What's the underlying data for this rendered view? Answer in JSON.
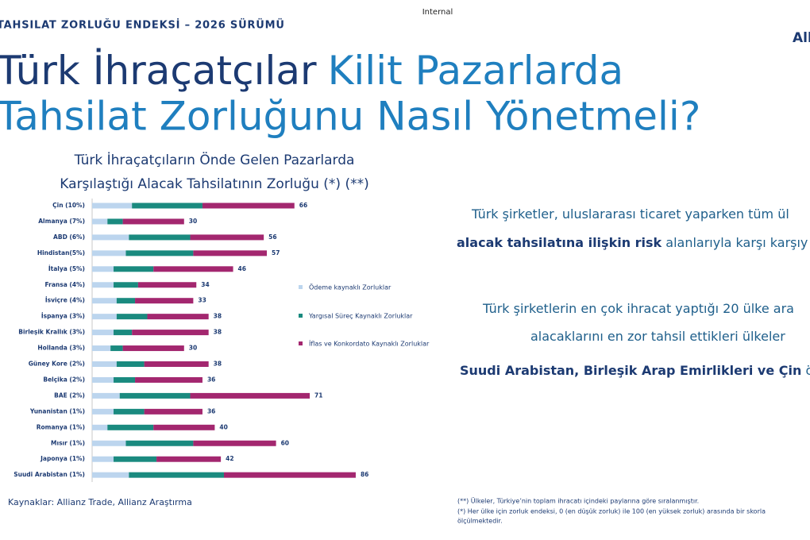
{
  "header": {
    "classification": "Internal",
    "kicker": "TAHSILAT ZORLUĞU ENDEKSİ – 2026 SÜRÜMÜ",
    "logo": "Allianz",
    "title_line1_dark": "Türk İhraçatçılar",
    "title_line1_blue": "Kilit Pazarlarda",
    "title_line2": "Tahsilat Zorluğunu Nasıl Yönetmeli?"
  },
  "chart_data": {
    "type": "stacked-bar-horizontal",
    "title": [
      "Türk İhraçatçıların Önde Gelen Pazarlarda",
      "Karşılaştığı Alacak Tahsilatının Zorluğu (*) (**)"
    ],
    "categories": [
      "Çin (10%)",
      "Almanya (7%)",
      "ABD (6%)",
      "Hindistan(5%)",
      "İtalya (5%)",
      "Fransa (4%)",
      "İsviçre (4%)",
      "İspanya (3%)",
      "Birleşik Krallık (3%)",
      "Hollanda (3%)",
      "Güney Kore (2%)",
      "Belçika (2%)",
      "BAE (2%)",
      "Yunanistan (1%)",
      "Romanya (1%)",
      "Mısır (1%)",
      "Japonya (1%)",
      "Suudi Arabistan (1%)"
    ],
    "series": [
      {
        "name": "Ödeme kaynaklı Zorluklar",
        "color": "#bcd5ee",
        "values": [
          13,
          5,
          12,
          11,
          7,
          7,
          8,
          8,
          7,
          6,
          8,
          7,
          9,
          7,
          5,
          11,
          7,
          12
        ]
      },
      {
        "name": "Yargısal Süreç Kaynaklı Zorluklar",
        "color": "#1a8a7f",
        "values": [
          23,
          5,
          20,
          22,
          13,
          8,
          6,
          10,
          6,
          4,
          9,
          7,
          23,
          10,
          15,
          22,
          14,
          31
        ]
      },
      {
        "name": "İflas ve Konkordato Kaynaklı Zorluklar",
        "color": "#a3276f",
        "values": [
          30,
          20,
          24,
          24,
          26,
          19,
          19,
          20,
          25,
          20,
          21,
          22,
          39,
          19,
          20,
          27,
          21,
          43
        ]
      }
    ],
    "totals": [
      66,
      30,
      56,
      57,
      46,
      34,
      33,
      38,
      38,
      30,
      38,
      36,
      71,
      36,
      40,
      60,
      42,
      86
    ]
  },
  "paragraphs": [
    [
      {
        "text": "Türk şirketler, uluslararası ticaret yaparken tüm ül",
        "bold": false
      }
    ],
    [
      {
        "text": "alacak tahsilatına ilişkin risk",
        "bold": true
      },
      {
        "text": " alanlarıyla karşı karşıy",
        "bold": false
      }
    ],
    [
      {
        "text": "Türk şirketlerin en çok ihracat yaptığı 20 ülke ara",
        "bold": false
      }
    ],
    [
      {
        "text": "alacaklarını en zor tahsil ettikleri ülkeler",
        "bold": false
      }
    ],
    [
      {
        "text": "Suudi Arabistan, Birleşik Arap Emirlikleri ve Çin",
        "bold": true
      },
      {
        "text": " ön",
        "bold": false
      }
    ]
  ],
  "footer": {
    "sources": "Kaynaklar: Allianz Trade, Allianz Araştırma",
    "notes": [
      "(**) Ülkeler, Türkiye’nin toplam ihracatı içindeki paylarına göre sıralanmıştır.",
      "(*) Her ülke için zorluk endeksi, 0 (en düşük zorluk) ile 100 (en yüksek zorluk) arasında bir skorla",
      "ölçülmektedir."
    ]
  }
}
